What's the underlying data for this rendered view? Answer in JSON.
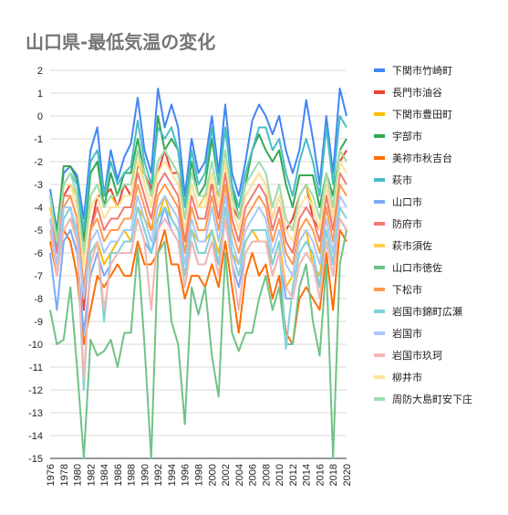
{
  "chart_data": {
    "type": "line",
    "title": "山口県-最低気温の変化",
    "xlabel": "",
    "ylabel": "",
    "ylim": [
      -15,
      2
    ],
    "yticks": [
      2,
      1,
      0,
      -1,
      -2,
      -3,
      -4,
      -5,
      -6,
      -7,
      -8,
      -9,
      -10,
      -11,
      -12,
      -13,
      -14,
      -15
    ],
    "xticks": [
      "1976",
      "1978",
      "1980",
      "1982",
      "1984",
      "1986",
      "1988",
      "1990",
      "1992",
      "1994",
      "1996",
      "1998",
      "2000",
      "2002",
      "2004",
      "2006",
      "2008",
      "2010",
      "2012",
      "2014",
      "2016",
      "2018",
      "2020"
    ],
    "x": [
      1976,
      1977,
      1978,
      1979,
      1980,
      1981,
      1982,
      1983,
      1984,
      1985,
      1986,
      1987,
      1988,
      1989,
      1990,
      1991,
      1992,
      1993,
      1994,
      1995,
      1996,
      1997,
      1998,
      1999,
      2000,
      2001,
      2002,
      2003,
      2004,
      2005,
      2006,
      2007,
      2008,
      2009,
      2010,
      2011,
      2012,
      2013,
      2014,
      2015,
      2016,
      2017,
      2018,
      2019,
      2020
    ],
    "grid": true,
    "legend_position": "right",
    "series": [
      {
        "name": "下関市竹崎町",
        "color": "#4285f4",
        "values": [
          -3.2,
          -5,
          -2.5,
          -2.2,
          -2.6,
          -4.5,
          -1.5,
          -0.5,
          -3.5,
          -1.5,
          -2.8,
          -1.8,
          -1.2,
          0.8,
          -1.5,
          -2.5,
          1.2,
          -0.5,
          0.5,
          -0.5,
          -3.5,
          -1,
          -2.5,
          -2,
          0,
          -2.5,
          0.5,
          -2.5,
          -3.5,
          -2,
          -0.2,
          0.5,
          0,
          -0.8,
          0,
          -1.5,
          -2.5,
          -1.5,
          0.7,
          -1,
          -3,
          0,
          -2.5,
          1.2,
          0
        ]
      },
      {
        "name": "長門市油谷",
        "color": "#ea4335",
        "values": [
          -4,
          -5.5,
          -3.5,
          -3,
          -3.5,
          -8.5,
          -5,
          -3.5,
          -3.5,
          -3.2,
          -4,
          -3,
          -3.5,
          -2.2,
          -2.5,
          -3.2,
          -2.5,
          -1.5,
          -2.5,
          -2.5,
          -4,
          -3,
          -4,
          -3.5,
          -3,
          -3.5,
          -2,
          -4,
          -4.5,
          -3.5,
          -3,
          -2.5,
          -3,
          -4.5,
          -3.5,
          -5,
          -4.5,
          -3.5,
          -3,
          -4.5,
          -5,
          -3,
          -4.5,
          -2,
          -1.5
        ]
      },
      {
        "name": "下関市豊田町",
        "color": "#fbbc04",
        "values": [
          -5,
          -6.5,
          -5,
          -4.5,
          -5,
          -7.5,
          -6,
          -5.5,
          -6.5,
          -6,
          -5.5,
          -5,
          -5.5,
          -4,
          -4.5,
          -5,
          -4.5,
          -3.5,
          -4.5,
          -5,
          -6,
          -5,
          -5.5,
          -5.5,
          -5,
          -6,
          -4.5,
          -6,
          -6.5,
          -5.5,
          -5,
          -5.5,
          -5.5,
          -6.5,
          -5.5,
          -7.5,
          -7,
          -5.5,
          -5,
          -6.5,
          -7,
          -5,
          -6.5,
          -4.5,
          -5
        ]
      },
      {
        "name": "宇部市",
        "color": "#34a853",
        "values": [
          -3.5,
          -5.2,
          -2.2,
          -2.2,
          -2.8,
          -5.5,
          -2.5,
          -2,
          -4,
          -2.5,
          -3.5,
          -2.5,
          -2.5,
          -1,
          -2.5,
          -3.5,
          0,
          -1.5,
          -1,
          -1.5,
          -4,
          -2,
          -3.5,
          -3,
          -1,
          -3,
          -0.5,
          -3,
          -4.5,
          -3,
          -1.5,
          -0.8,
          -1.5,
          -2,
          -1.5,
          -3,
          -4,
          -2.6,
          -2.6,
          -2.6,
          -4,
          -2.5,
          -3.5,
          -1.5,
          -1
        ]
      },
      {
        "name": "美祢市秋吉台",
        "color": "#ff6d01",
        "values": [
          -5.5,
          -7,
          -5,
          -5.5,
          -7,
          -10,
          -8.5,
          -7,
          -7.5,
          -7,
          -6.5,
          -7,
          -7,
          -5.5,
          -6.5,
          -6.5,
          -6,
          -5,
          -6.5,
          -6.5,
          -8,
          -7,
          -7,
          -7.5,
          -6.5,
          -7.5,
          -5.5,
          -7.5,
          -9.5,
          -7,
          -6,
          -7,
          -6.5,
          -8,
          -7,
          -9.5,
          -10,
          -8,
          -7.5,
          -8,
          -8.5,
          -6,
          -8.5,
          -5,
          -5.5
        ]
      },
      {
        "name": "萩市",
        "color": "#46bdc6",
        "values": [
          -3.5,
          -6,
          -3,
          -2.5,
          -3,
          -5,
          -2,
          -1.5,
          -3.5,
          -2,
          -3,
          -2.5,
          -2.2,
          -0.2,
          -2,
          -3,
          -0.5,
          -1,
          -0.5,
          -1.5,
          -4,
          -1.5,
          -3,
          -2.5,
          -0.5,
          -3,
          -0.5,
          -3,
          -4,
          -2.5,
          -1.5,
          -0.5,
          -0.5,
          -1.5,
          -1,
          -2.5,
          -3.5,
          -2,
          -1,
          -2,
          -3.5,
          -0.5,
          -3,
          0,
          -0.5
        ]
      },
      {
        "name": "山口市",
        "color": "#7baaf7",
        "values": [
          -6,
          -8.5,
          -5.5,
          -5,
          -6,
          -9.5,
          -7,
          -6,
          -7,
          -6.5,
          -6,
          -6,
          -6,
          -4.5,
          -5.5,
          -6,
          -5,
          -4,
          -5,
          -5.5,
          -7.5,
          -5.5,
          -6.5,
          -6.5,
          -5.5,
          -6.5,
          -4.5,
          -6.5,
          -7.5,
          -6,
          -5.5,
          -5.5,
          -5.5,
          -7,
          -6,
          -8,
          -8,
          -6.5,
          -6,
          -6.5,
          -7.5,
          -5.5,
          -7,
          -4.5,
          -5
        ]
      },
      {
        "name": "防府市",
        "color": "#f07b72",
        "values": [
          -4.5,
          -6,
          -3.5,
          -3.5,
          -4.5,
          -7.5,
          -5,
          -4,
          -5,
          -4.5,
          -4.5,
          -4,
          -4,
          -2.5,
          -3.5,
          -4.5,
          -3,
          -2.5,
          -3,
          -3.5,
          -5.5,
          -3.5,
          -4.5,
          -4.5,
          -3,
          -4.5,
          -2.5,
          -4.5,
          -5.5,
          -4,
          -3.5,
          -3,
          -3.5,
          -5,
          -4,
          -5.5,
          -6,
          -4.5,
          -4,
          -4.5,
          -5.5,
          -3.5,
          -5,
          -2.5,
          -3
        ]
      },
      {
        "name": "萩市須佐",
        "color": "#fcd04f",
        "values": [
          -4,
          -5.5,
          -3,
          -3,
          -3.5,
          -6.5,
          -3.5,
          -3,
          -4,
          -3.5,
          -4,
          -3.5,
          -3.5,
          -1.5,
          -3,
          -4,
          -2,
          -1.5,
          -2,
          -2.5,
          -4.5,
          -3,
          -4,
          -3.5,
          -2.5,
          -4,
          -2,
          -4,
          -5,
          -3.5,
          -3,
          -2.5,
          -3,
          -4,
          -3,
          -4.5,
          -5,
          -3.5,
          -3,
          -4,
          -5,
          -2.5,
          -4,
          -1.5,
          -2
        ]
      },
      {
        "name": "山口市徳佐",
        "color": "#71c287",
        "values": [
          -8.5,
          -10,
          -9.8,
          -7.5,
          -11,
          -15,
          -9.8,
          -10.5,
          -10.3,
          -9.8,
          -11,
          -9.5,
          -9.5,
          -5.8,
          -10,
          -15,
          -6,
          -5.5,
          -9,
          -10,
          -13.5,
          -7.5,
          -8.7,
          -7.5,
          -10.5,
          -12.3,
          -6,
          -9.5,
          -10.3,
          -9.5,
          -9.5,
          -8,
          -7,
          -8.5,
          -7.5,
          -10,
          -10,
          -7.5,
          -6.5,
          -9,
          -10.5,
          -6.5,
          -15,
          -6.5,
          -5
        ]
      },
      {
        "name": "下松市",
        "color": "#ff994d",
        "values": [
          -4.5,
          -6.5,
          -4,
          -3.5,
          -4.5,
          -7.5,
          -5,
          -4.5,
          -5.5,
          -5,
          -5,
          -4.5,
          -4.5,
          -3,
          -4,
          -5,
          -3.5,
          -3,
          -3.5,
          -4,
          -6,
          -4,
          -5,
          -5,
          -3.5,
          -5,
          -3,
          -5,
          -6,
          -4.5,
          -4,
          -3.5,
          -4,
          -5.5,
          -4.5,
          -6,
          -6.5,
          -5,
          -4.5,
          -5,
          -6,
          -4,
          -5.5,
          -3,
          -3.5
        ]
      },
      {
        "name": "岩国市錦町広瀬",
        "color": "#7ed1d7",
        "values": [
          -5,
          -7,
          -4.5,
          -4,
          -5.5,
          -12,
          -6,
          -5.5,
          -9,
          -6,
          -6,
          -5.5,
          -5.5,
          -4,
          -5,
          -6,
          -4.5,
          -4,
          -4.5,
          -5,
          -7,
          -5,
          -6,
          -6,
          -5,
          -6.5,
          -4,
          -6,
          -7,
          -5.5,
          -5,
          -5,
          -5,
          -6.5,
          -5.5,
          -10.2,
          -7.5,
          -6,
          -5.5,
          -6,
          -7.5,
          -5,
          -6.5,
          -4,
          -4.5
        ]
      },
      {
        "name": "岩国市",
        "color": "#a8c7fa",
        "values": [
          -4.5,
          -6.5,
          -4,
          -4,
          -5,
          -8,
          -5.5,
          -5,
          -6,
          -5.5,
          -5.5,
          -5,
          -5,
          -3.5,
          -4.5,
          -5.5,
          -4,
          -3.5,
          -4,
          -4.5,
          -6.5,
          -4.5,
          -5.5,
          -5.5,
          -4,
          -5.5,
          -3.5,
          -5.5,
          -6.5,
          -5,
          -4.5,
          -4,
          -4.5,
          -6,
          -5,
          -6.5,
          -7,
          -5.5,
          -5,
          -5.5,
          -6.5,
          -4.5,
          -6,
          -3.5,
          -4
        ]
      },
      {
        "name": "岩国市玖珂",
        "color": "#f4b6b2",
        "values": [
          -5,
          -7,
          -5,
          -4.5,
          -5.5,
          -11.5,
          -6.5,
          -5.5,
          -8.5,
          -6.5,
          -6,
          -6,
          -6,
          -4.5,
          -5.5,
          -8.5,
          -5,
          -4.5,
          -5,
          -5.5,
          -7.5,
          -5.5,
          -6.5,
          -6.5,
          -5.5,
          -7,
          -4.5,
          -6.5,
          -8.5,
          -6,
          -5.5,
          -5.5,
          -5.5,
          -7,
          -6,
          -7.5,
          -8,
          -6.5,
          -6,
          -6.5,
          -8,
          -5.5,
          -7,
          -4.5,
          -5
        ]
      },
      {
        "name": "柳井市",
        "color": "#fde49b",
        "values": [
          -3.5,
          -5.5,
          -3,
          -3,
          -4,
          -6.5,
          -4,
          -3.5,
          -4.5,
          -4,
          -4,
          -3.5,
          -3.5,
          -2,
          -3,
          -4,
          -2.5,
          -2,
          -2.5,
          -3,
          -5,
          -3,
          -4,
          -4,
          -2.5,
          -4,
          -2,
          -4,
          -5,
          -3.5,
          -3,
          -2.5,
          -3,
          -4.5,
          -3.5,
          -5,
          -5.5,
          -4,
          -3.5,
          -4,
          -5,
          -3,
          -4.5,
          -2,
          -2.5
        ]
      },
      {
        "name": "周防大島町安下庄",
        "color": "#9fdcaf",
        "values": [
          -3.5,
          -5.5,
          -3,
          -2.5,
          -3.5,
          -6,
          -3.5,
          -3,
          -4,
          -3.5,
          -3.5,
          -3,
          -3,
          -1.5,
          -2.5,
          -3.5,
          -2,
          -1.5,
          -2,
          -2.5,
          -4.5,
          -2.5,
          -3.5,
          -3.5,
          -2,
          -3.5,
          -1.5,
          -3.5,
          -4.5,
          -3,
          -2.5,
          -2,
          -2.5,
          -4,
          -3,
          -4.5,
          -5,
          -3.5,
          -3,
          -3.5,
          -4.5,
          -2.5,
          -4,
          -1.5,
          -2
        ]
      }
    ]
  }
}
